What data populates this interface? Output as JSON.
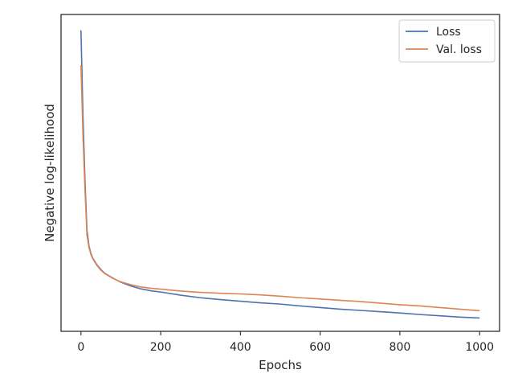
{
  "chart_data": {
    "type": "line",
    "title": "",
    "xlabel": "Epochs",
    "ylabel": "Negative log-likelihood",
    "xlim": [
      -50,
      1050
    ],
    "ylim": [
      0,
      100
    ],
    "xticks": [
      0,
      200,
      400,
      600,
      800,
      1000
    ],
    "yticks": [],
    "grid": false,
    "legend_position": "top-right",
    "series": [
      {
        "name": "Loss",
        "color": "#4c72b0",
        "x": [
          0,
          5,
          10,
          15,
          20,
          25,
          30,
          40,
          50,
          60,
          80,
          100,
          125,
          150,
          175,
          200,
          250,
          300,
          350,
          400,
          450,
          500,
          550,
          600,
          650,
          700,
          750,
          800,
          850,
          900,
          950,
          1000
        ],
        "y": [
          95.0,
          68.0,
          48.0,
          32.0,
          27.0,
          24.5,
          23.0,
          21.0,
          19.5,
          18.3,
          16.8,
          15.5,
          14.3,
          13.4,
          12.8,
          12.4,
          11.4,
          10.6,
          10.0,
          9.5,
          9.0,
          8.6,
          8.0,
          7.5,
          7.0,
          6.6,
          6.2,
          5.8,
          5.3,
          4.9,
          4.5,
          4.2
        ]
      },
      {
        "name": "Val. loss",
        "color": "#dd8452",
        "x": [
          0,
          5,
          10,
          15,
          20,
          25,
          30,
          40,
          50,
          60,
          80,
          100,
          125,
          150,
          175,
          200,
          250,
          300,
          350,
          400,
          450,
          500,
          550,
          600,
          650,
          700,
          750,
          800,
          850,
          900,
          950,
          1000
        ],
        "y": [
          84.0,
          62.0,
          45.0,
          30.5,
          26.5,
          24.2,
          22.8,
          20.8,
          19.3,
          18.2,
          16.7,
          15.6,
          14.7,
          14.0,
          13.6,
          13.3,
          12.7,
          12.3,
          12.0,
          11.8,
          11.5,
          11.1,
          10.6,
          10.2,
          9.8,
          9.4,
          8.9,
          8.4,
          8.0,
          7.5,
          7.0,
          6.5
        ]
      }
    ]
  }
}
